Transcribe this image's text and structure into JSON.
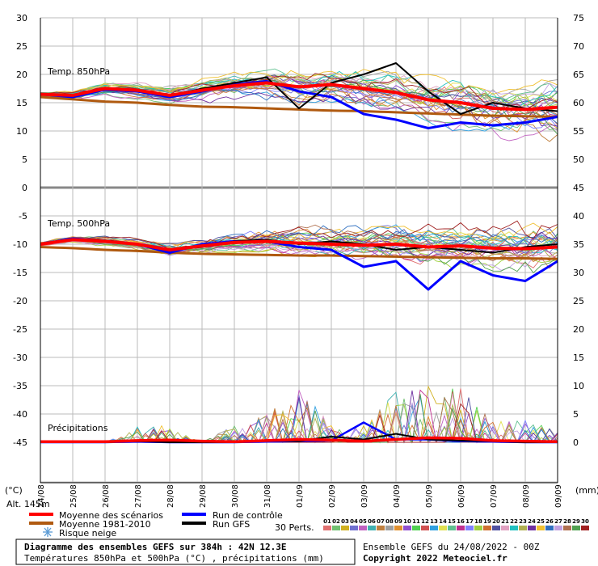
{
  "chart_data": {
    "type": "line",
    "title": "Diagramme des ensembles GEFS sur 384h : 42N 12.3E",
    "subtitle": "Températures 850hPa et 500hPa (°C) , précipitations (mm)",
    "run_info": "Ensemble GEFS du 24/08/2022 - 00Z",
    "copyright": "Copyright 2022 Meteociel.fr",
    "altitude": "Alt. 145m",
    "left_unit": "(°C)",
    "right_unit": "(mm)",
    "left_ticks": [
      "30",
      "25",
      "20",
      "15",
      "10",
      "5",
      "0",
      "-5",
      "-10",
      "-15",
      "-20",
      "-25",
      "-30",
      "-35",
      "-40",
      "-45"
    ],
    "right_ticks": [
      "75",
      "70",
      "65",
      "60",
      "55",
      "50",
      "45",
      "40",
      "35",
      "30",
      "25",
      "20",
      "15",
      "10",
      "5",
      "0"
    ],
    "x_labels": [
      "24/08",
      "25/08",
      "26/08",
      "27/08",
      "28/08",
      "29/08",
      "30/08",
      "31/08",
      "01/09",
      "02/09",
      "03/09",
      "04/09",
      "05/09",
      "06/09",
      "07/09",
      "08/09",
      "09/09"
    ],
    "panel_labels": {
      "t850": "Temp. 850hPa",
      "t500": "Temp. 500hPa",
      "precip": "Précipitations"
    },
    "legend": {
      "mean": {
        "label": "Moyenne des scénarios",
        "color": "#ff0000"
      },
      "clim": {
        "label": "Moyenne 1981-2010",
        "color": "#b05a10"
      },
      "snow": {
        "label": "Risque neige",
        "icon": "snowflake-icon"
      },
      "control": {
        "label": "Run de contrôle",
        "color": "#0000ff"
      },
      "gfs": {
        "label": "Run GFS",
        "color": "#000000"
      },
      "perts_label": "30 Perts."
    },
    "pert_colors": [
      "#e07070",
      "#70c070",
      "#d0b020",
      "#7070d0",
      "#c060c0",
      "#40b0b0",
      "#c08040",
      "#a0a0a0",
      "#e09030",
      "#9050d0",
      "#50d050",
      "#d05050",
      "#30a0e0",
      "#e0e050",
      "#60c090",
      "#c03090",
      "#8080ff",
      "#a0d040",
      "#d07030",
      "#5050a0",
      "#e0a0c0",
      "#20c0c0",
      "#b0b050",
      "#7030a0",
      "#f0c030",
      "#3070c0",
      "#c0a0e0",
      "#b07050",
      "#50a050",
      "#a02020"
    ],
    "x_days": [
      0,
      1,
      2,
      3,
      4,
      5,
      6,
      7,
      8,
      9,
      10,
      11,
      12,
      13,
      14,
      15,
      16
    ],
    "t850": {
      "mean": [
        16.5,
        16.3,
        17.5,
        17.2,
        16.3,
        17.2,
        18.0,
        18.5,
        17.8,
        18.2,
        17.5,
        16.8,
        15.5,
        15.0,
        14.0,
        13.8,
        14.2
      ],
      "clim": [
        16.0,
        15.6,
        15.2,
        15.0,
        14.6,
        14.3,
        14.2,
        14.0,
        13.8,
        13.6,
        13.5,
        13.3,
        13.1,
        12.9,
        12.7,
        12.6,
        12.5
      ],
      "control": [
        16.5,
        16.0,
        17.3,
        17.0,
        16.0,
        17.0,
        18.2,
        18.8,
        17.0,
        16.0,
        13.0,
        12.0,
        10.5,
        11.5,
        11.0,
        11.5,
        12.5
      ],
      "gfs": [
        16.5,
        16.2,
        17.5,
        17.3,
        16.2,
        17.5,
        18.5,
        19.5,
        14.0,
        18.5,
        20.0,
        22.0,
        17.0,
        13.0,
        15.0,
        14.0,
        13.5
      ]
    },
    "t500": {
      "mean": [
        -10.0,
        -9.2,
        -9.5,
        -10.0,
        -11.0,
        -10.3,
        -9.7,
        -9.5,
        -9.8,
        -10.0,
        -10.2,
        -10.0,
        -10.5,
        -10.3,
        -10.7,
        -10.8,
        -10.5
      ],
      "clim": [
        -10.5,
        -10.7,
        -11.0,
        -11.2,
        -11.5,
        -11.7,
        -11.8,
        -11.9,
        -12.0,
        -12.0,
        -12.1,
        -12.2,
        -12.3,
        -12.4,
        -12.5,
        -12.5,
        -12.6
      ],
      "control": [
        -10.0,
        -9.0,
        -9.5,
        -10.0,
        -11.5,
        -10.0,
        -9.5,
        -9.5,
        -10.5,
        -11.0,
        -14.0,
        -13.0,
        -18.0,
        -13.0,
        -15.5,
        -16.5,
        -13.0
      ],
      "gfs": [
        -10.0,
        -9.2,
        -9.3,
        -10.0,
        -11.0,
        -10.5,
        -9.5,
        -9.2,
        -10.0,
        -9.5,
        -10.0,
        -11.0,
        -10.5,
        -11.0,
        -11.5,
        -10.5,
        -10.0
      ]
    },
    "precip": {
      "mean": [
        0.1,
        0.1,
        0.1,
        0.3,
        0.4,
        0.2,
        0.1,
        0.3,
        0.5,
        0.4,
        0.2,
        0.5,
        0.8,
        0.7,
        0.3,
        0.2,
        0.1
      ],
      "control": [
        0.0,
        0.0,
        0.0,
        0.1,
        0.0,
        0.0,
        0.0,
        0.1,
        0.2,
        0.3,
        3.5,
        0.5,
        0.5,
        0.2,
        0.1,
        0.0,
        0.0
      ],
      "gfs": [
        0.0,
        0.0,
        0.0,
        0.2,
        0.0,
        0.0,
        0.0,
        0.3,
        0.2,
        1.0,
        0.5,
        1.5,
        0.5,
        0.3,
        0.2,
        0.0,
        0.0
      ],
      "spikes": [
        0,
        0,
        0,
        3,
        3,
        0,
        3,
        5,
        10,
        3,
        3,
        9,
        10,
        10,
        4,
        4,
        2
      ]
    }
  }
}
